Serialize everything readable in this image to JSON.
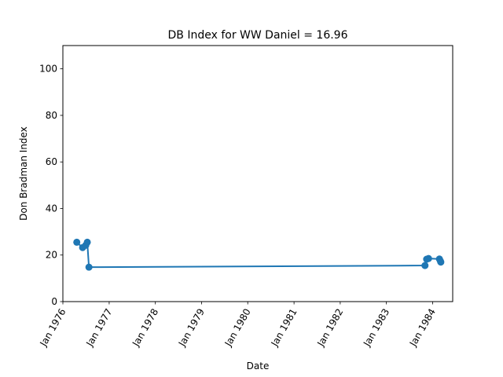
{
  "chart_data": {
    "type": "line",
    "title": "DB Index for WW Daniel = 16.96",
    "xlabel": "Date",
    "ylabel": "Don Bradman Index",
    "ylim": [
      0,
      110
    ],
    "xlim": [
      "1976-01-01",
      "1984-06-08"
    ],
    "y_ticks": [
      0,
      20,
      40,
      60,
      80,
      100
    ],
    "x_ticks": [
      {
        "date": "1976-01-01",
        "label": "Jan 1976"
      },
      {
        "date": "1977-01-01",
        "label": "Jan 1977"
      },
      {
        "date": "1978-01-01",
        "label": "Jan 1978"
      },
      {
        "date": "1979-01-01",
        "label": "Jan 1979"
      },
      {
        "date": "1980-01-01",
        "label": "Jan 1980"
      },
      {
        "date": "1981-01-01",
        "label": "Jan 1981"
      },
      {
        "date": "1982-01-01",
        "label": "Jan 1982"
      },
      {
        "date": "1983-01-01",
        "label": "Jan 1983"
      },
      {
        "date": "1984-01-01",
        "label": "Jan 1984"
      }
    ],
    "grid": false,
    "series": [
      {
        "name": "",
        "color": "#1f77b4",
        "marker": "circle",
        "points": [
          {
            "x": "1976-04-20",
            "y": 25.5
          },
          {
            "x": "1976-06-05",
            "y": 23.2
          },
          {
            "x": "1976-06-30",
            "y": 24.2
          },
          {
            "x": "1976-07-12",
            "y": 25.5
          },
          {
            "x": "1976-07-25",
            "y": 14.8
          },
          {
            "x": "1983-11-02",
            "y": 15.5
          },
          {
            "x": "1983-11-15",
            "y": 18.2
          },
          {
            "x": "1983-11-30",
            "y": 18.5
          },
          {
            "x": "1984-02-24",
            "y": 18.3
          },
          {
            "x": "1984-03-03",
            "y": 17.4
          },
          {
            "x": "1984-03-06",
            "y": 16.96
          }
        ]
      }
    ]
  }
}
